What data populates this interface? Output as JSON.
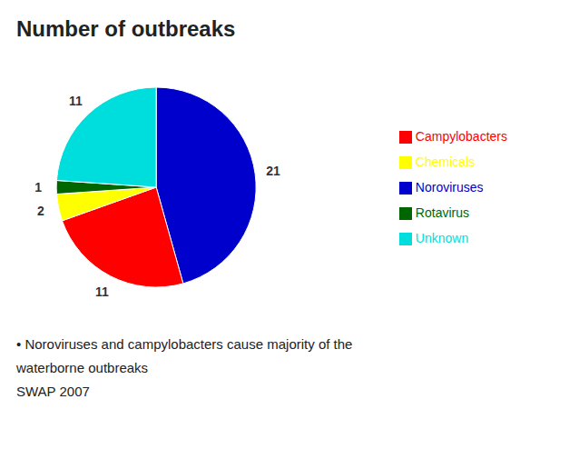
{
  "chart_data": {
    "type": "pie",
    "title": "Number of outbreaks",
    "categories": [
      "Noroviruses",
      "Campylobacters",
      "Chemicals",
      "Rotavirus",
      "Unknown"
    ],
    "values": [
      21,
      11,
      2,
      1,
      11
    ],
    "colors": [
      "#0000cc",
      "#ff0000",
      "#ffff00",
      "#006600",
      "#00dddd"
    ],
    "data_labels": true,
    "legend": "right",
    "annotations": [
      "• Noroviruses and campylobacters cause majority of the",
      "waterborne outbreaks",
      "SWAP 2007"
    ]
  }
}
